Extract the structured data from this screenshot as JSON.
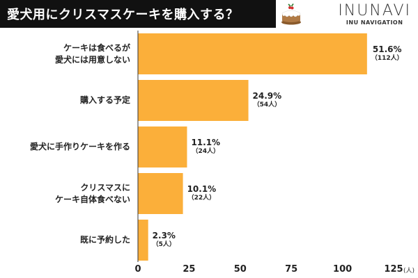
{
  "header": {
    "title": "愛犬用にクリスマスケーキを購入する？",
    "brand_name": "INUNAVI",
    "brand_sub": "INU NAVIGATION",
    "cake_icon": "christmas-cake-icon"
  },
  "colors": {
    "bar": "#FBAF3A",
    "title_bg": "#111111",
    "axis": "#333333"
  },
  "chart_data": {
    "type": "bar",
    "orientation": "horizontal",
    "title": "愛犬用にクリスマスケーキを購入する？",
    "categories": [
      [
        "ケーキは食べるが",
        "愛犬には用意しない"
      ],
      [
        "購入する予定"
      ],
      [
        "愛犬に手作りケーキを作る"
      ],
      [
        "クリスマスに",
        "ケーキ自体食べない"
      ],
      [
        "既に予約した"
      ]
    ],
    "values": [
      112,
      54,
      24,
      22,
      5
    ],
    "percent_labels": [
      "51.6%",
      "24.9%",
      "11.1%",
      "10.1%",
      "2.3%"
    ],
    "count_labels": [
      "（112人）",
      "（54人）",
      "（24人）",
      "（22人）",
      "（5人）"
    ],
    "xlim": [
      0,
      125
    ],
    "xticks": [
      "0",
      "25",
      "50",
      "75",
      "100",
      "125"
    ],
    "x_unit": "(人)",
    "grid": false
  }
}
